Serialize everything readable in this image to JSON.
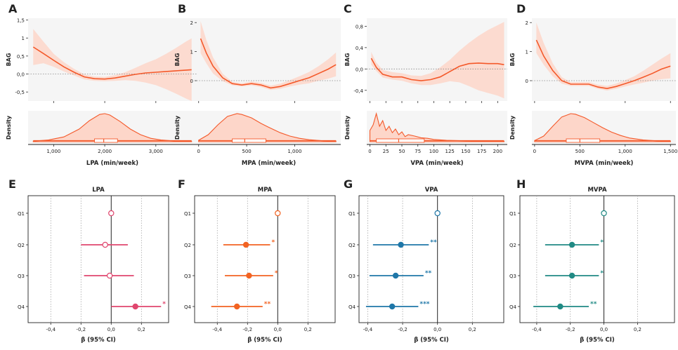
{
  "colors": {
    "curve": "#f4592a",
    "band": "#fdd6c9",
    "panel_bg": "#f5f5f5",
    "forest_lpa": "#e0466e",
    "forest_mpa": "#f26322",
    "forest_blue": "#1f77a8",
    "forest_mvpa": "#208a84"
  },
  "chart_data": [
    {
      "panel": "A",
      "type": "line",
      "ylabel": "BAG",
      "xlim": [
        500,
        3800
      ],
      "ylim": [
        -0.75,
        1.55
      ],
      "yticks": [
        1.5,
        1.0,
        0.5,
        0.0,
        -0.5
      ],
      "ytick_labels": [
        "1,5",
        "1",
        "0,5",
        "0,0",
        "-0,5"
      ],
      "xticks": [
        1000,
        2000,
        3000
      ],
      "x": [
        600,
        800,
        1000,
        1200,
        1400,
        1600,
        1800,
        2000,
        2200,
        2400,
        2600,
        2800,
        3000,
        3200,
        3400,
        3600,
        3700
      ],
      "y": [
        0.75,
        0.57,
        0.38,
        0.2,
        0.05,
        -0.08,
        -0.13,
        -0.14,
        -0.11,
        -0.06,
        -0.01,
        0.03,
        0.05,
        0.07,
        0.09,
        0.11,
        0.12
      ],
      "lower": [
        0.25,
        0.3,
        0.2,
        0.07,
        -0.04,
        -0.15,
        -0.19,
        -0.2,
        -0.19,
        -0.17,
        -0.19,
        -0.24,
        -0.31,
        -0.42,
        -0.55,
        -0.69,
        -0.75
      ],
      "upper": [
        1.25,
        0.9,
        0.56,
        0.33,
        0.14,
        -0.01,
        -0.07,
        -0.08,
        -0.03,
        0.05,
        0.17,
        0.3,
        0.41,
        0.56,
        0.73,
        0.91,
        0.99
      ],
      "xlabel": "LPA (min/week)",
      "density_x": [
        600,
        900,
        1200,
        1500,
        1700,
        1900,
        2000,
        2100,
        2300,
        2500,
        2700,
        2900,
        3100,
        3400,
        3700
      ],
      "density_y": [
        0.02,
        0.06,
        0.17,
        0.45,
        0.75,
        0.97,
        1.0,
        0.95,
        0.72,
        0.45,
        0.25,
        0.12,
        0.06,
        0.02,
        0.01
      ],
      "box": {
        "min": 600,
        "q1": 1800,
        "median": 1980,
        "q3": 2250,
        "max": 3700
      },
      "forest": {
        "title": "LPA",
        "panel": "E",
        "color_key": "forest_lpa",
        "xlim": [
          -0.55,
          0.38
        ],
        "xticks": [
          -0.4,
          -0.2,
          0.0,
          0.2
        ],
        "xtick_labels": [
          "-0,4",
          "-0,2",
          "0,0",
          "0,2"
        ],
        "xlabel": "β (95% CI)",
        "rows": [
          {
            "label": "Q1",
            "est": 0.0,
            "lo": 0.0,
            "hi": 0.0,
            "sig": "",
            "ref": true
          },
          {
            "label": "Q2",
            "est": -0.04,
            "lo": -0.2,
            "hi": 0.11,
            "sig": "",
            "ref": true
          },
          {
            "label": "Q3",
            "est": -0.01,
            "lo": -0.18,
            "hi": 0.15,
            "sig": "",
            "ref": true
          },
          {
            "label": "Q4",
            "est": 0.16,
            "lo": 0.0,
            "hi": 0.33,
            "sig": "*",
            "ref": false
          }
        ]
      }
    },
    {
      "panel": "B",
      "type": "line",
      "ylabel": "BAG",
      "xlim": [
        -20,
        1480
      ],
      "ylim": [
        -0.7,
        2.15
      ],
      "yticks": [
        2,
        1,
        0
      ],
      "ytick_labels": [
        "2",
        "1",
        "0"
      ],
      "xticks": [
        0,
        500,
        1000
      ],
      "xtick_labels": [
        "0",
        "500",
        "1,000"
      ],
      "x": [
        20,
        80,
        150,
        250,
        350,
        450,
        550,
        650,
        750,
        850,
        950,
        1050,
        1150,
        1250,
        1350,
        1430
      ],
      "y": [
        1.45,
        0.95,
        0.5,
        0.1,
        -0.1,
        -0.15,
        -0.1,
        -0.15,
        -0.25,
        -0.2,
        -0.1,
        0.0,
        0.1,
        0.25,
        0.4,
        0.55
      ],
      "lower": [
        0.95,
        0.6,
        0.25,
        -0.02,
        -0.16,
        -0.2,
        -0.16,
        -0.22,
        -0.32,
        -0.28,
        -0.2,
        -0.14,
        -0.09,
        0.0,
        0.07,
        0.15
      ],
      "upper": [
        2.05,
        1.4,
        0.8,
        0.24,
        -0.04,
        -0.09,
        -0.03,
        -0.08,
        -0.17,
        -0.1,
        0.02,
        0.15,
        0.3,
        0.5,
        0.74,
        0.97
      ],
      "xlabel": "MPA (min/week)",
      "density_x": [
        0,
        100,
        200,
        300,
        400,
        450,
        550,
        650,
        750,
        850,
        950,
        1050,
        1150,
        1300,
        1430
      ],
      "density_y": [
        0.05,
        0.25,
        0.6,
        0.9,
        1.0,
        0.97,
        0.85,
        0.65,
        0.48,
        0.32,
        0.2,
        0.12,
        0.07,
        0.03,
        0.02
      ],
      "box": {
        "min": 0,
        "q1": 350,
        "median": 480,
        "q3": 700,
        "max": 1430
      },
      "forest": {
        "title": "MPA",
        "panel": "F",
        "color_key": "forest_mpa",
        "xlim": [
          -0.55,
          0.38
        ],
        "xticks": [
          -0.4,
          -0.2,
          0.0,
          0.2
        ],
        "xtick_labels": [
          "-0,4",
          "-0,2",
          "0,0",
          "0,2"
        ],
        "xlabel": "β (95% CI)",
        "rows": [
          {
            "label": "Q1",
            "est": 0.0,
            "lo": 0.0,
            "hi": 0.0,
            "sig": "",
            "ref": true
          },
          {
            "label": "Q2",
            "est": -0.21,
            "lo": -0.36,
            "hi": -0.05,
            "sig": "*",
            "ref": false
          },
          {
            "label": "Q3",
            "est": -0.19,
            "lo": -0.35,
            "hi": -0.03,
            "sig": "*",
            "ref": false
          },
          {
            "label": "Q4",
            "est": -0.27,
            "lo": -0.44,
            "hi": -0.1,
            "sig": "**",
            "ref": false
          }
        ]
      }
    },
    {
      "panel": "C",
      "type": "line",
      "ylabel": "BAG",
      "xlim": [
        -5,
        215
      ],
      "ylim": [
        -0.6,
        0.95
      ],
      "yticks": [
        0.8,
        0.4,
        0.0,
        -0.4
      ],
      "ytick_labels": [
        "0,8",
        "0,4",
        "0,0",
        "-0,4"
      ],
      "xticks": [
        0,
        25,
        50,
        75,
        100,
        125,
        150,
        175,
        200
      ],
      "x": [
        2,
        10,
        20,
        35,
        50,
        65,
        80,
        95,
        110,
        125,
        140,
        155,
        170,
        185,
        200,
        210
      ],
      "y": [
        0.2,
        0.03,
        -0.1,
        -0.15,
        -0.15,
        -0.2,
        -0.22,
        -0.2,
        -0.15,
        -0.05,
        0.05,
        0.1,
        0.11,
        0.1,
        0.1,
        0.08
      ],
      "lower": [
        0.08,
        -0.04,
        -0.16,
        -0.2,
        -0.22,
        -0.27,
        -0.3,
        -0.3,
        -0.27,
        -0.23,
        -0.25,
        -0.32,
        -0.4,
        -0.45,
        -0.5,
        -0.55
      ],
      "upper": [
        0.32,
        0.12,
        -0.02,
        -0.06,
        -0.08,
        -0.12,
        -0.13,
        -0.08,
        0.03,
        0.17,
        0.34,
        0.49,
        0.62,
        0.73,
        0.82,
        0.88
      ],
      "xlabel": "VPA (min/week)",
      "density_x": [
        0,
        5,
        10,
        15,
        20,
        25,
        30,
        35,
        40,
        45,
        50,
        55,
        60,
        70,
        80,
        90,
        100,
        120,
        150,
        180,
        210
      ],
      "density_y": [
        0.4,
        0.6,
        1.0,
        0.55,
        0.75,
        0.4,
        0.55,
        0.32,
        0.45,
        0.25,
        0.35,
        0.18,
        0.25,
        0.2,
        0.14,
        0.12,
        0.08,
        0.05,
        0.03,
        0.02,
        0.01
      ],
      "box": {
        "min": 0,
        "q1": 10,
        "median": 45,
        "q3": 85,
        "max": 210
      },
      "forest": {
        "title": "VPA",
        "panel": "G",
        "color_key": "forest_blue",
        "xlim": [
          -0.45,
          0.38
        ],
        "xticks": [
          -0.4,
          -0.2,
          0.0,
          0.2
        ],
        "xtick_labels": [
          "-0,4",
          "-0,2",
          "0,0",
          "0,2"
        ],
        "xlabel": "β (95% CI)",
        "rows": [
          {
            "label": "Q1",
            "est": 0.0,
            "lo": 0.0,
            "hi": 0.0,
            "sig": "",
            "ref": true
          },
          {
            "label": "Q2",
            "est": -0.21,
            "lo": -0.37,
            "hi": -0.05,
            "sig": "**",
            "ref": false
          },
          {
            "label": "Q3",
            "est": -0.24,
            "lo": -0.39,
            "hi": -0.08,
            "sig": "**",
            "ref": false
          },
          {
            "label": "Q4",
            "est": -0.26,
            "lo": -0.41,
            "hi": -0.11,
            "sig": "***",
            "ref": false
          }
        ]
      }
    },
    {
      "panel": "D",
      "type": "line",
      "ylabel": "BAG",
      "xlim": [
        -30,
        1560
      ],
      "ylim": [
        -0.7,
        2.15
      ],
      "yticks": [
        2,
        1,
        0
      ],
      "ytick_labels": [
        "2",
        "1",
        "0"
      ],
      "xticks": [
        0,
        500,
        1000,
        1500
      ],
      "xtick_labels": [
        "0",
        "500",
        "1,000",
        "1,500"
      ],
      "x": [
        20,
        100,
        200,
        300,
        400,
        500,
        600,
        700,
        800,
        900,
        1000,
        1100,
        1200,
        1300,
        1400,
        1500
      ],
      "y": [
        1.4,
        0.85,
        0.35,
        0.0,
        -0.12,
        -0.12,
        -0.12,
        -0.22,
        -0.27,
        -0.2,
        -0.1,
        0.0,
        0.12,
        0.25,
        0.4,
        0.5
      ],
      "lower": [
        0.95,
        0.55,
        0.15,
        -0.1,
        -0.18,
        -0.18,
        -0.18,
        -0.28,
        -0.34,
        -0.28,
        -0.2,
        -0.13,
        -0.07,
        0.0,
        0.05,
        0.08
      ],
      "upper": [
        2.0,
        1.3,
        0.6,
        0.12,
        -0.05,
        -0.05,
        -0.05,
        -0.14,
        -0.18,
        -0.1,
        0.02,
        0.15,
        0.34,
        0.55,
        0.76,
        0.95
      ],
      "xlabel": "MVPA (min/week)",
      "density_x": [
        0,
        100,
        200,
        300,
        400,
        450,
        550,
        650,
        750,
        850,
        950,
        1050,
        1200,
        1350,
        1500
      ],
      "density_y": [
        0.04,
        0.2,
        0.55,
        0.88,
        1.0,
        0.98,
        0.86,
        0.68,
        0.5,
        0.34,
        0.22,
        0.13,
        0.06,
        0.03,
        0.02
      ],
      "box": {
        "min": 0,
        "q1": 350,
        "median": 500,
        "q3": 720,
        "max": 1500
      },
      "forest": {
        "title": "MVPA",
        "panel": "H",
        "color_key": "forest_mvpa",
        "xlim": [
          -0.5,
          0.42
        ],
        "xticks": [
          -0.4,
          -0.2,
          0.0,
          0.2
        ],
        "xtick_labels": [
          "-0,4",
          "-0,2",
          "0,0",
          "0,2"
        ],
        "xlabel": "β (95% CI)",
        "rows": [
          {
            "label": "Q1",
            "est": 0.0,
            "lo": 0.0,
            "hi": 0.0,
            "sig": "",
            "ref": true
          },
          {
            "label": "Q2",
            "est": -0.19,
            "lo": -0.35,
            "hi": -0.03,
            "sig": "*",
            "ref": false
          },
          {
            "label": "Q3",
            "est": -0.19,
            "lo": -0.35,
            "hi": -0.03,
            "sig": "*",
            "ref": false
          },
          {
            "label": "Q4",
            "est": -0.26,
            "lo": -0.42,
            "hi": -0.09,
            "sig": "**",
            "ref": false
          }
        ]
      }
    }
  ],
  "labels": {
    "density_ylabel": "Density"
  }
}
